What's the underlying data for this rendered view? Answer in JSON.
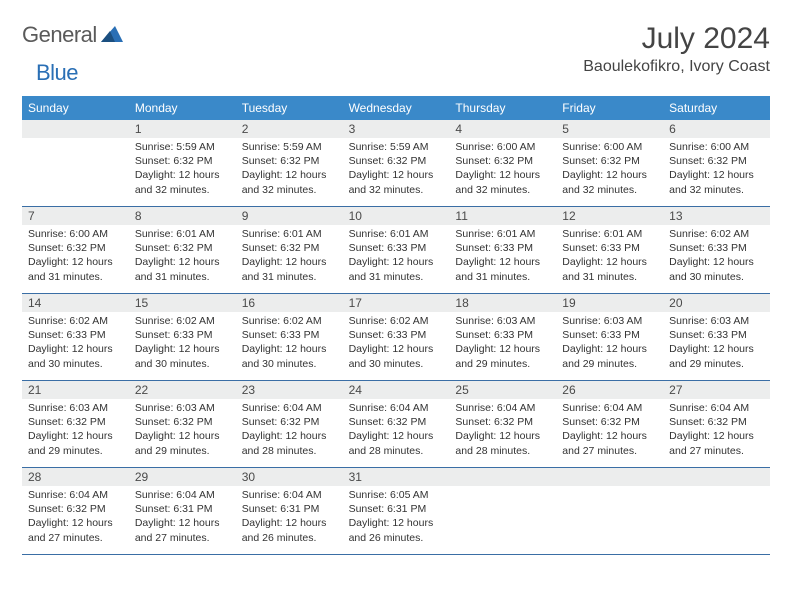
{
  "logo": {
    "word1": "General",
    "word2": "Blue"
  },
  "title": "July 2024",
  "location": "Baoulekofikro, Ivory Coast",
  "colors": {
    "header_bg": "#3a89c9",
    "header_text": "#ffffff",
    "band_bg": "#eceded",
    "week_border": "#3a6ea5",
    "logo_gray": "#5a5a5a",
    "logo_blue": "#2a6fb5",
    "body_text": "#333333"
  },
  "typography": {
    "title_fontsize": 30,
    "location_fontsize": 16,
    "dayhead_fontsize": 12,
    "daynum_fontsize": 12,
    "cell_fontsize": 10.5
  },
  "day_labels": [
    "Sunday",
    "Monday",
    "Tuesday",
    "Wednesday",
    "Thursday",
    "Friday",
    "Saturday"
  ],
  "weeks": [
    [
      null,
      {
        "n": "1",
        "sr": "Sunrise: 5:59 AM",
        "ss": "Sunset: 6:32 PM",
        "dl": "Daylight: 12 hours and 32 minutes."
      },
      {
        "n": "2",
        "sr": "Sunrise: 5:59 AM",
        "ss": "Sunset: 6:32 PM",
        "dl": "Daylight: 12 hours and 32 minutes."
      },
      {
        "n": "3",
        "sr": "Sunrise: 5:59 AM",
        "ss": "Sunset: 6:32 PM",
        "dl": "Daylight: 12 hours and 32 minutes."
      },
      {
        "n": "4",
        "sr": "Sunrise: 6:00 AM",
        "ss": "Sunset: 6:32 PM",
        "dl": "Daylight: 12 hours and 32 minutes."
      },
      {
        "n": "5",
        "sr": "Sunrise: 6:00 AM",
        "ss": "Sunset: 6:32 PM",
        "dl": "Daylight: 12 hours and 32 minutes."
      },
      {
        "n": "6",
        "sr": "Sunrise: 6:00 AM",
        "ss": "Sunset: 6:32 PM",
        "dl": "Daylight: 12 hours and 32 minutes."
      }
    ],
    [
      {
        "n": "7",
        "sr": "Sunrise: 6:00 AM",
        "ss": "Sunset: 6:32 PM",
        "dl": "Daylight: 12 hours and 31 minutes."
      },
      {
        "n": "8",
        "sr": "Sunrise: 6:01 AM",
        "ss": "Sunset: 6:32 PM",
        "dl": "Daylight: 12 hours and 31 minutes."
      },
      {
        "n": "9",
        "sr": "Sunrise: 6:01 AM",
        "ss": "Sunset: 6:32 PM",
        "dl": "Daylight: 12 hours and 31 minutes."
      },
      {
        "n": "10",
        "sr": "Sunrise: 6:01 AM",
        "ss": "Sunset: 6:33 PM",
        "dl": "Daylight: 12 hours and 31 minutes."
      },
      {
        "n": "11",
        "sr": "Sunrise: 6:01 AM",
        "ss": "Sunset: 6:33 PM",
        "dl": "Daylight: 12 hours and 31 minutes."
      },
      {
        "n": "12",
        "sr": "Sunrise: 6:01 AM",
        "ss": "Sunset: 6:33 PM",
        "dl": "Daylight: 12 hours and 31 minutes."
      },
      {
        "n": "13",
        "sr": "Sunrise: 6:02 AM",
        "ss": "Sunset: 6:33 PM",
        "dl": "Daylight: 12 hours and 30 minutes."
      }
    ],
    [
      {
        "n": "14",
        "sr": "Sunrise: 6:02 AM",
        "ss": "Sunset: 6:33 PM",
        "dl": "Daylight: 12 hours and 30 minutes."
      },
      {
        "n": "15",
        "sr": "Sunrise: 6:02 AM",
        "ss": "Sunset: 6:33 PM",
        "dl": "Daylight: 12 hours and 30 minutes."
      },
      {
        "n": "16",
        "sr": "Sunrise: 6:02 AM",
        "ss": "Sunset: 6:33 PM",
        "dl": "Daylight: 12 hours and 30 minutes."
      },
      {
        "n": "17",
        "sr": "Sunrise: 6:02 AM",
        "ss": "Sunset: 6:33 PM",
        "dl": "Daylight: 12 hours and 30 minutes."
      },
      {
        "n": "18",
        "sr": "Sunrise: 6:03 AM",
        "ss": "Sunset: 6:33 PM",
        "dl": "Daylight: 12 hours and 29 minutes."
      },
      {
        "n": "19",
        "sr": "Sunrise: 6:03 AM",
        "ss": "Sunset: 6:33 PM",
        "dl": "Daylight: 12 hours and 29 minutes."
      },
      {
        "n": "20",
        "sr": "Sunrise: 6:03 AM",
        "ss": "Sunset: 6:33 PM",
        "dl": "Daylight: 12 hours and 29 minutes."
      }
    ],
    [
      {
        "n": "21",
        "sr": "Sunrise: 6:03 AM",
        "ss": "Sunset: 6:32 PM",
        "dl": "Daylight: 12 hours and 29 minutes."
      },
      {
        "n": "22",
        "sr": "Sunrise: 6:03 AM",
        "ss": "Sunset: 6:32 PM",
        "dl": "Daylight: 12 hours and 29 minutes."
      },
      {
        "n": "23",
        "sr": "Sunrise: 6:04 AM",
        "ss": "Sunset: 6:32 PM",
        "dl": "Daylight: 12 hours and 28 minutes."
      },
      {
        "n": "24",
        "sr": "Sunrise: 6:04 AM",
        "ss": "Sunset: 6:32 PM",
        "dl": "Daylight: 12 hours and 28 minutes."
      },
      {
        "n": "25",
        "sr": "Sunrise: 6:04 AM",
        "ss": "Sunset: 6:32 PM",
        "dl": "Daylight: 12 hours and 28 minutes."
      },
      {
        "n": "26",
        "sr": "Sunrise: 6:04 AM",
        "ss": "Sunset: 6:32 PM",
        "dl": "Daylight: 12 hours and 27 minutes."
      },
      {
        "n": "27",
        "sr": "Sunrise: 6:04 AM",
        "ss": "Sunset: 6:32 PM",
        "dl": "Daylight: 12 hours and 27 minutes."
      }
    ],
    [
      {
        "n": "28",
        "sr": "Sunrise: 6:04 AM",
        "ss": "Sunset: 6:32 PM",
        "dl": "Daylight: 12 hours and 27 minutes."
      },
      {
        "n": "29",
        "sr": "Sunrise: 6:04 AM",
        "ss": "Sunset: 6:31 PM",
        "dl": "Daylight: 12 hours and 27 minutes."
      },
      {
        "n": "30",
        "sr": "Sunrise: 6:04 AM",
        "ss": "Sunset: 6:31 PM",
        "dl": "Daylight: 12 hours and 26 minutes."
      },
      {
        "n": "31",
        "sr": "Sunrise: 6:05 AM",
        "ss": "Sunset: 6:31 PM",
        "dl": "Daylight: 12 hours and 26 minutes."
      },
      null,
      null,
      null
    ]
  ]
}
